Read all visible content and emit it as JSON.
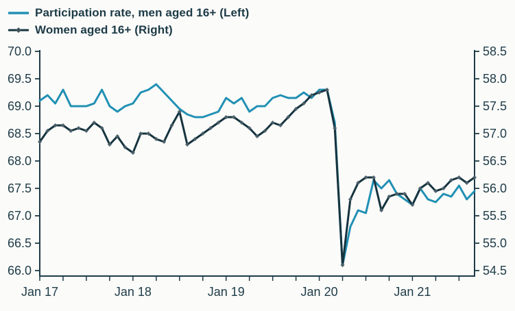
{
  "legend": {
    "series1_label": "Participation rate, men aged 16+ (Left)",
    "series2_label": "Women aged 16+ (Right)"
  },
  "colors": {
    "men_line": "#2190b4",
    "women_line": "#16343f",
    "marker": "#4e626b",
    "axis": "#1d3b47",
    "text": "#1d3b47",
    "background": "#fbfbf9"
  },
  "chart_data": {
    "type": "line",
    "x": [
      "2017-01",
      "2017-02",
      "2017-03",
      "2017-04",
      "2017-05",
      "2017-06",
      "2017-07",
      "2017-08",
      "2017-09",
      "2017-10",
      "2017-11",
      "2017-12",
      "2018-01",
      "2018-02",
      "2018-03",
      "2018-04",
      "2018-05",
      "2018-06",
      "2018-07",
      "2018-08",
      "2018-09",
      "2018-10",
      "2018-11",
      "2018-12",
      "2019-01",
      "2019-02",
      "2019-03",
      "2019-04",
      "2019-05",
      "2019-06",
      "2019-07",
      "2019-08",
      "2019-09",
      "2019-10",
      "2019-11",
      "2019-12",
      "2020-01",
      "2020-02",
      "2020-03",
      "2020-04",
      "2020-05",
      "2020-06",
      "2020-07",
      "2020-08",
      "2020-09",
      "2020-10",
      "2020-11",
      "2020-12",
      "2021-01",
      "2021-02",
      "2021-03",
      "2021-04",
      "2021-05",
      "2021-06",
      "2021-07",
      "2021-08",
      "2021-09"
    ],
    "x_tick_labels": [
      "Jan 17",
      "Jan 18",
      "Jan 19",
      "Jan 20",
      "Jan 21"
    ],
    "series": [
      {
        "name": "Participation rate, men aged 16+ (Left)",
        "axis": "left",
        "color": "#2190b4",
        "marker": false,
        "values": [
          69.1,
          69.2,
          69.05,
          69.3,
          69.0,
          69.0,
          69.0,
          69.05,
          69.3,
          69.0,
          68.9,
          69.0,
          69.05,
          69.25,
          69.3,
          69.4,
          69.25,
          69.1,
          68.95,
          68.85,
          68.8,
          68.8,
          68.85,
          68.9,
          69.15,
          69.05,
          69.15,
          68.9,
          69.0,
          69.0,
          69.15,
          69.2,
          69.15,
          69.15,
          69.25,
          69.15,
          69.3,
          69.3,
          68.7,
          66.1,
          66.8,
          67.1,
          67.05,
          67.65,
          67.5,
          67.65,
          67.4,
          67.3,
          67.2,
          67.5,
          67.3,
          67.25,
          67.4,
          67.35,
          67.55,
          67.3,
          67.45
        ]
      },
      {
        "name": "Women aged 16+ (Right)",
        "axis": "right",
        "color": "#16343f",
        "marker": true,
        "values": [
          56.85,
          57.05,
          57.15,
          57.15,
          57.05,
          57.1,
          57.05,
          57.2,
          57.1,
          56.8,
          56.95,
          56.75,
          56.65,
          57.0,
          57.0,
          56.9,
          56.85,
          57.15,
          57.4,
          56.8,
          56.9,
          57.0,
          57.1,
          57.2,
          57.3,
          57.3,
          57.2,
          57.1,
          56.95,
          57.05,
          57.2,
          57.15,
          57.3,
          57.45,
          57.55,
          57.7,
          57.75,
          57.8,
          57.1,
          54.6,
          55.8,
          56.1,
          56.2,
          56.2,
          55.6,
          55.85,
          55.9,
          55.9,
          55.7,
          56.0,
          56.1,
          55.95,
          56.0,
          56.15,
          56.2,
          56.1,
          56.2
        ]
      }
    ],
    "left_axis": {
      "min": 66.0,
      "max": 70.0,
      "step": 0.5,
      "tick_labels": [
        "70.0",
        "69.5",
        "69.0",
        "68.5",
        "68.0",
        "67.5",
        "67.0",
        "66.5",
        "66.0"
      ]
    },
    "right_axis": {
      "min": 54.5,
      "max": 58.5,
      "step": 0.5,
      "tick_labels": [
        "58.5",
        "58.0",
        "57.5",
        "57.0",
        "56.5",
        "56.0",
        "55.5",
        "55.0",
        "54.5"
      ]
    },
    "grid": false,
    "legend_position": "top-left",
    "x_minor_tick_every_months": 3
  }
}
